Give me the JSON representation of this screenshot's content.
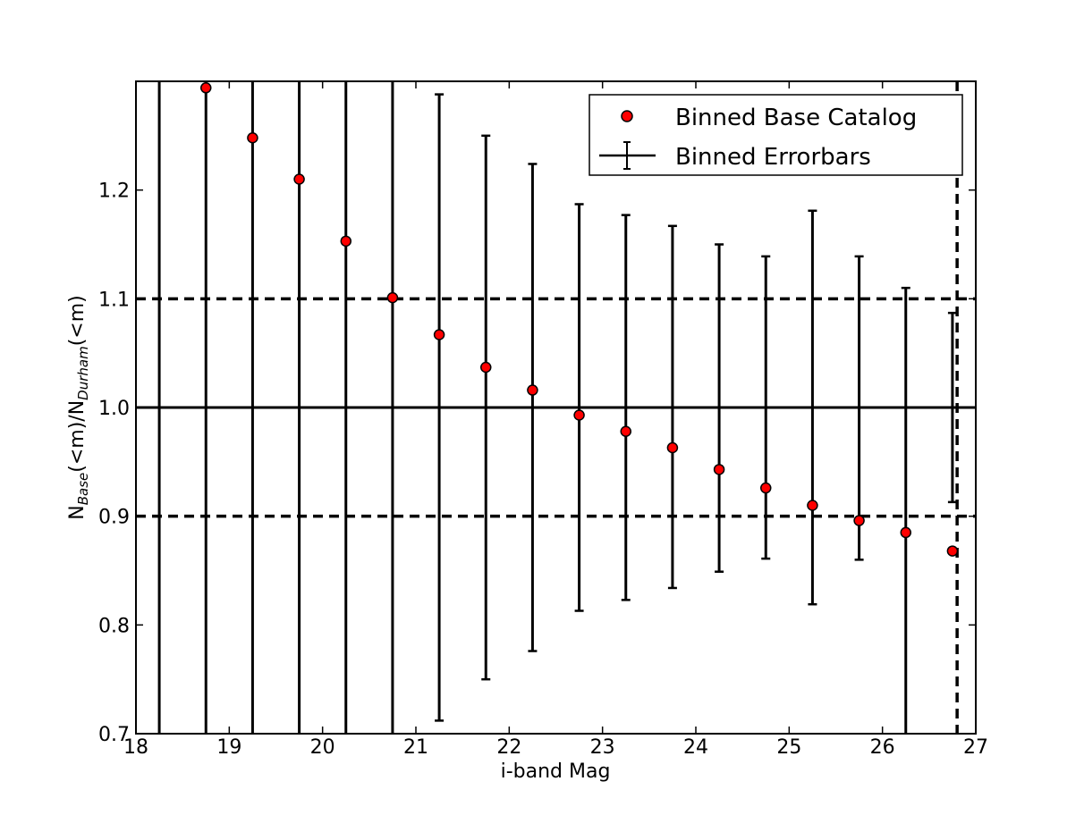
{
  "chart_data": {
    "type": "scatter",
    "xlabel": "i-band Mag",
    "ylabel": {
      "prefix": "N",
      "sub1": "Base",
      "middle": "(<m)/N",
      "sub2": "Durham",
      "suffix": "(<m)"
    },
    "xlim": [
      18,
      27
    ],
    "ylim": [
      0.7,
      1.3
    ],
    "x_ticks": [
      "18",
      "19",
      "20",
      "21",
      "22",
      "23",
      "24",
      "25",
      "26",
      "27"
    ],
    "y_ticks": [
      "0.7",
      "0.8",
      "0.9",
      "1.0",
      "1.1",
      "1.2"
    ],
    "grid": false,
    "legend_position": "top-right",
    "legend": {
      "points_label": "Binned Base Catalog",
      "errorbars_label": "Binned Errorbars"
    },
    "series": [
      {
        "name": "Binned Base Catalog",
        "marker_color": "#ff0000",
        "x": [
          18.75,
          19.25,
          19.75,
          20.25,
          20.75,
          21.25,
          21.75,
          22.25,
          22.75,
          23.25,
          23.75,
          24.25,
          24.75,
          25.25,
          25.75,
          26.25,
          26.75
        ],
        "y": [
          1.294,
          1.248,
          1.21,
          1.153,
          1.101,
          1.067,
          1.037,
          1.016,
          0.993,
          0.978,
          0.963,
          0.943,
          0.926,
          0.91,
          0.896,
          0.885,
          0.868
        ]
      },
      {
        "name": "Binned Errorbars",
        "x": [
          18.25,
          18.75,
          19.25,
          19.75,
          20.25,
          20.75,
          21.25,
          21.75,
          22.25,
          22.75,
          23.25,
          23.75,
          24.25,
          24.75,
          25.25,
          25.75,
          26.25,
          26.75
        ],
        "y_low": [
          0.7,
          0.7,
          0.7,
          0.7,
          0.7,
          0.7,
          0.712,
          0.75,
          0.776,
          0.813,
          0.823,
          0.834,
          0.849,
          0.861,
          0.819,
          0.86,
          0.7,
          0.913
        ],
        "y_high": [
          1.3,
          1.3,
          1.3,
          1.3,
          1.3,
          1.3,
          1.288,
          1.25,
          1.224,
          1.187,
          1.177,
          1.167,
          1.15,
          1.139,
          1.181,
          1.139,
          1.11,
          1.087
        ]
      }
    ],
    "reference_lines": {
      "horizontal_solid": 1.0,
      "horizontal_dashed": [
        0.9,
        1.1
      ],
      "vertical_dashed": 26.8
    }
  }
}
